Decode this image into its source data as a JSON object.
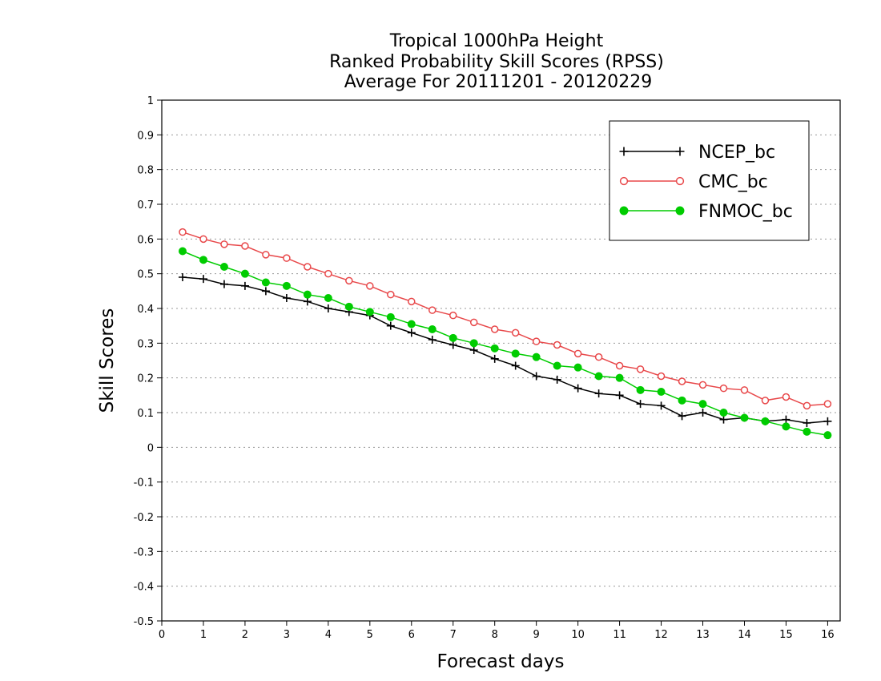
{
  "chart_data": {
    "type": "line",
    "title": [
      "Tropical 1000hPa Height",
      "Ranked Probability Skill Scores (RPSS)",
      "Average For 20111201 - 20120229"
    ],
    "xlabel": "Forecast days",
    "ylabel": "Skill Scores",
    "xlim": [
      0,
      16.3
    ],
    "ylim": [
      -0.5,
      1
    ],
    "x_ticks": [
      0,
      1,
      2,
      3,
      4,
      5,
      6,
      7,
      8,
      9,
      10,
      11,
      12,
      13,
      14,
      15,
      16
    ],
    "y_ticks": [
      -0.5,
      -0.4,
      -0.3,
      -0.2,
      -0.1,
      0,
      0.1,
      0.2,
      0.3,
      0.4,
      0.5,
      0.6,
      0.7,
      0.8,
      0.9,
      1
    ],
    "y_tick_labels": [
      "-0.5",
      "-0.4",
      "-0.3",
      "-0.2",
      "-0.1",
      "0",
      "0.1",
      "0.2",
      "0.3",
      "0.4",
      "0.5",
      "0.6",
      "0.7",
      "0.8",
      "0.9",
      "1"
    ],
    "grid": true,
    "legend_position": "top-right",
    "x": [
      0.5,
      1,
      1.5,
      2,
      2.5,
      3,
      3.5,
      4,
      4.5,
      5,
      5.5,
      6,
      6.5,
      7,
      7.5,
      8,
      8.5,
      9,
      9.5,
      10,
      10.5,
      11,
      11.5,
      12,
      12.5,
      13,
      13.5,
      14,
      14.5,
      15,
      15.5,
      16
    ],
    "series": [
      {
        "name": "NCEP_bc",
        "color": "#000000",
        "marker": "plus",
        "values": [
          0.49,
          0.485,
          0.47,
          0.465,
          0.45,
          0.43,
          0.42,
          0.4,
          0.39,
          0.38,
          0.35,
          0.33,
          0.31,
          0.295,
          0.28,
          0.255,
          0.235,
          0.205,
          0.195,
          0.17,
          0.155,
          0.15,
          0.125,
          0.12,
          0.09,
          0.1,
          0.08,
          0.085,
          0.075,
          0.08,
          0.07,
          0.075
        ]
      },
      {
        "name": "CMC_bc",
        "color": "#e8484a",
        "marker": "open-circle",
        "values": [
          0.62,
          0.6,
          0.585,
          0.58,
          0.555,
          0.545,
          0.52,
          0.5,
          0.48,
          0.465,
          0.44,
          0.42,
          0.395,
          0.38,
          0.36,
          0.34,
          0.33,
          0.305,
          0.295,
          0.27,
          0.26,
          0.235,
          0.225,
          0.205,
          0.19,
          0.18,
          0.17,
          0.165,
          0.135,
          0.145,
          0.12,
          0.125
        ]
      },
      {
        "name": "FNMOC_bc",
        "color": "#00cc00",
        "marker": "filled-circle",
        "values": [
          0.565,
          0.54,
          0.52,
          0.5,
          0.475,
          0.465,
          0.44,
          0.43,
          0.405,
          0.39,
          0.375,
          0.355,
          0.34,
          0.315,
          0.3,
          0.285,
          0.27,
          0.26,
          0.235,
          0.23,
          0.205,
          0.2,
          0.165,
          0.16,
          0.135,
          0.125,
          0.1,
          0.085,
          0.075,
          0.06,
          0.045,
          0.035
        ]
      }
    ]
  }
}
